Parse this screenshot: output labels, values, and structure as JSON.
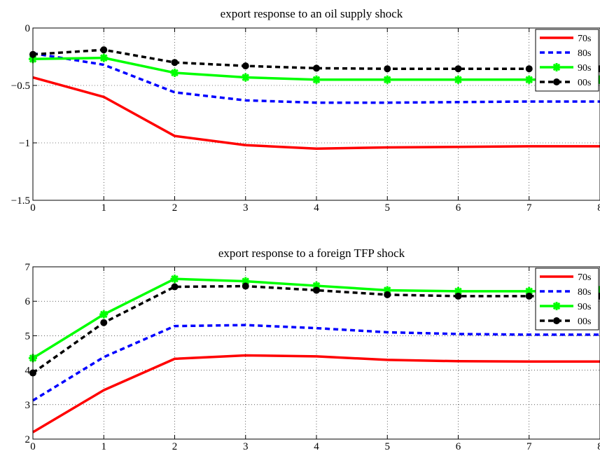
{
  "chart_data": [
    {
      "type": "line",
      "title": "export response to an oil supply shock",
      "xlabel": "",
      "ylabel": "",
      "x": [
        0,
        1,
        2,
        3,
        4,
        5,
        6,
        7,
        8
      ],
      "xlim": [
        0,
        8
      ],
      "ylim": [
        -1.5,
        0
      ],
      "xticks": [
        "0",
        "1",
        "2",
        "3",
        "4",
        "5",
        "6",
        "7",
        "8"
      ],
      "yticks": [
        0,
        -0.5,
        -1,
        -1.5
      ],
      "ytick_labels": [
        "0",
        "−0.5",
        "−1",
        "−1.5"
      ],
      "grid": true,
      "legend": "top-right",
      "series": [
        {
          "name": "70s",
          "color": "#ff0000",
          "style": "solid",
          "marker": "none",
          "values": [
            -0.43,
            -0.6,
            -0.94,
            -1.02,
            -1.05,
            -1.04,
            -1.035,
            -1.03,
            -1.03
          ]
        },
        {
          "name": "80s",
          "color": "#0000ff",
          "style": "dashed",
          "marker": "none",
          "values": [
            -0.22,
            -0.32,
            -0.56,
            -0.63,
            -0.65,
            -0.65,
            -0.645,
            -0.64,
            -0.64
          ]
        },
        {
          "name": "90s",
          "color": "#00ff00",
          "style": "solid",
          "marker": "star",
          "values": [
            -0.27,
            -0.26,
            -0.39,
            -0.43,
            -0.45,
            -0.45,
            -0.45,
            -0.45,
            -0.45
          ]
        },
        {
          "name": "00s",
          "color": "#000000",
          "style": "dashed",
          "marker": "circle",
          "values": [
            -0.23,
            -0.19,
            -0.3,
            -0.33,
            -0.35,
            -0.355,
            -0.355,
            -0.355,
            -0.355
          ]
        }
      ]
    },
    {
      "type": "line",
      "title": "export response to a foreign TFP shock",
      "xlabel": "",
      "ylabel": "",
      "x": [
        0,
        1,
        2,
        3,
        4,
        5,
        6,
        7,
        8
      ],
      "xlim": [
        0,
        8
      ],
      "ylim": [
        2,
        7
      ],
      "xticks": [
        "0",
        "1",
        "2",
        "3",
        "4",
        "5",
        "6",
        "7",
        "8"
      ],
      "yticks": [
        7,
        6,
        5,
        4,
        3,
        2
      ],
      "ytick_labels": [
        "7",
        "6",
        "5",
        "4",
        "3",
        "2"
      ],
      "grid": true,
      "legend": "top-right",
      "series": [
        {
          "name": "70s",
          "color": "#ff0000",
          "style": "solid",
          "marker": "none",
          "values": [
            2.2,
            3.42,
            4.33,
            4.43,
            4.4,
            4.3,
            4.26,
            4.25,
            4.25
          ]
        },
        {
          "name": "80s",
          "color": "#0000ff",
          "style": "dashed",
          "marker": "none",
          "values": [
            3.12,
            4.38,
            5.28,
            5.31,
            5.22,
            5.1,
            5.05,
            5.03,
            5.03
          ]
        },
        {
          "name": "90s",
          "color": "#00ff00",
          "style": "solid",
          "marker": "star",
          "values": [
            4.35,
            5.62,
            6.65,
            6.58,
            6.45,
            6.32,
            6.29,
            6.29,
            6.32
          ]
        },
        {
          "name": "00s",
          "color": "#000000",
          "style": "dashed",
          "marker": "circle",
          "values": [
            3.92,
            5.38,
            6.42,
            6.44,
            6.32,
            6.19,
            6.15,
            6.15,
            6.15
          ]
        }
      ]
    }
  ]
}
